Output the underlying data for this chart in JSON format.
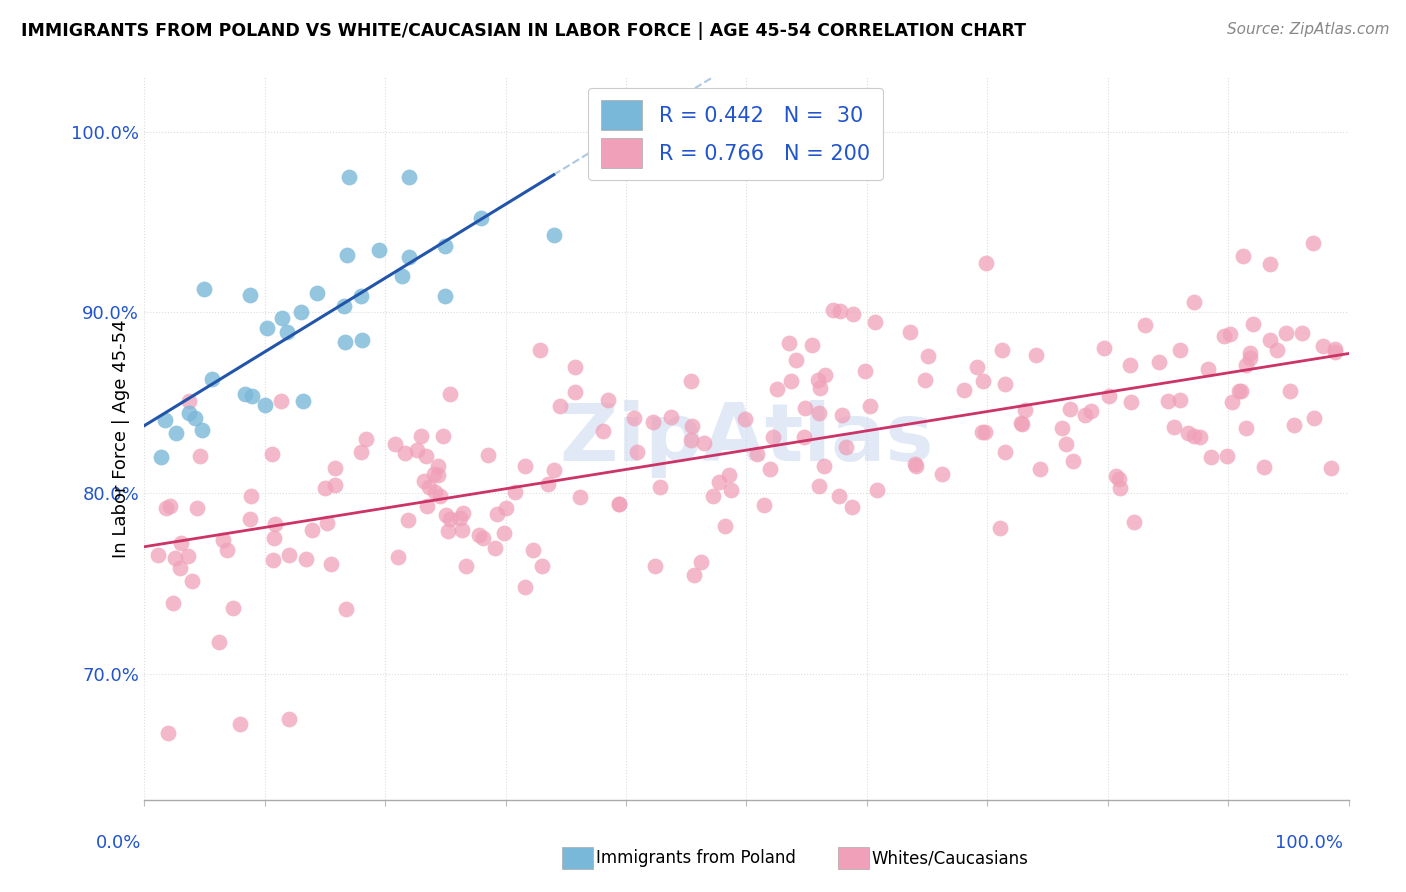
{
  "title": "IMMIGRANTS FROM POLAND VS WHITE/CAUCASIAN IN LABOR FORCE | AGE 45-54 CORRELATION CHART",
  "source": "Source: ZipAtlas.com",
  "color_blue": "#7ab8d9",
  "color_pink": "#f0a0b8",
  "color_blue_line": "#2255aa",
  "color_pink_line": "#cc3366",
  "color_blue_dash": "#99bbdd",
  "color_legend_text": "#2255cc",
  "color_axis_labels": "#2255cc",
  "color_grid": "#dddddd",
  "watermark_color": "#c8d8ee",
  "xlim": [
    0.0,
    1.0
  ],
  "ylim": [
    0.63,
    1.03
  ],
  "yticks": [
    0.7,
    0.8,
    0.9,
    1.0
  ],
  "ytick_labels": [
    "70.0%",
    "80.0%",
    "90.0%",
    "100.0%"
  ],
  "legend_line1": "R = 0.442   N =  30",
  "legend_line2": "R = 0.766   N = 200",
  "bottom_label1": "Immigrants from Poland",
  "bottom_label2": "Whites/Caucasians"
}
